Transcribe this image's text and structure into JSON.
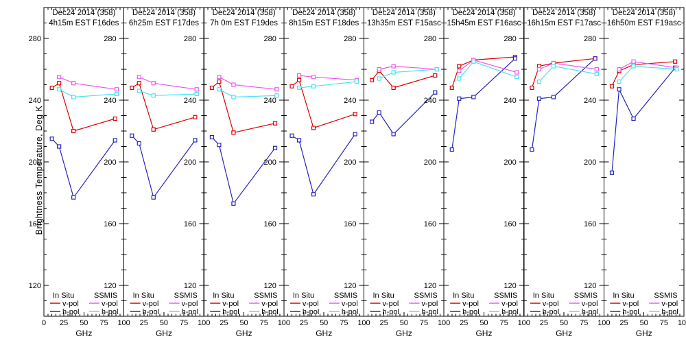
{
  "figure": {
    "ylabel": "Brightness Temperature, Deg K",
    "xlabel_per_panel": "GHz",
    "background": "#ffffff",
    "frame_color": "#000000",
    "y_ticks": [
      280,
      240,
      200,
      160,
      120
    ],
    "x_ticks": [
      0,
      25,
      50,
      75,
      100
    ],
    "ylim": [
      100,
      300
    ],
    "xlim": [
      0,
      100
    ],
    "y_minor_step": 10,
    "x_minor_step": 5,
    "legend": {
      "group1": "In Situ",
      "group2": "SSMIS",
      "row1": "v-pol",
      "row2": "h-pol"
    },
    "colors": {
      "insitu_vpol": "#dd0000",
      "insitu_hpol": "#2424bc",
      "ssmis_vpol": "#ee58ee",
      "ssmis_hpol": "#44e4f2"
    }
  },
  "chart_data": [
    {
      "type": "line",
      "title_line1": "Dec24 2014 (358)",
      "title_line2": "4h15m EST F16des",
      "series": [
        {
          "name": "In Situ v-pol",
          "color": "insitu_vpol",
          "x": [
            10,
            19,
            37,
            89
          ],
          "y": [
            248,
            251,
            220,
            228
          ]
        },
        {
          "name": "In Situ h-pol",
          "color": "insitu_hpol",
          "x": [
            10,
            19,
            37,
            89
          ],
          "y": [
            215,
            210,
            177,
            214
          ]
        },
        {
          "name": "SSMIS v-pol",
          "color": "ssmis_vpol",
          "x": [
            19,
            37,
            91
          ],
          "y": [
            255,
            251,
            247
          ]
        },
        {
          "name": "SSMIS h-pol",
          "color": "ssmis_hpol",
          "x": [
            19,
            37,
            91
          ],
          "y": [
            247,
            242,
            244
          ]
        }
      ]
    },
    {
      "type": "line",
      "title_line1": "Dec24 2014 (358)",
      "title_line2": "6h25m EST F17des",
      "series": [
        {
          "name": "In Situ v-pol",
          "color": "insitu_vpol",
          "x": [
            10,
            19,
            37,
            89
          ],
          "y": [
            248,
            251,
            221,
            229
          ]
        },
        {
          "name": "In Situ h-pol",
          "color": "insitu_hpol",
          "x": [
            10,
            19,
            37,
            89
          ],
          "y": [
            217,
            212,
            177,
            214
          ]
        },
        {
          "name": "SSMIS v-pol",
          "color": "ssmis_vpol",
          "x": [
            19,
            37,
            91
          ],
          "y": [
            255,
            251,
            247
          ]
        },
        {
          "name": "SSMIS h-pol",
          "color": "ssmis_hpol",
          "x": [
            19,
            37,
            91
          ],
          "y": [
            246,
            243,
            244
          ]
        }
      ]
    },
    {
      "type": "line",
      "title_line1": "Dec24 2014 (358)",
      "title_line2": "7h 0m EST F19des",
      "series": [
        {
          "name": "In Situ v-pol",
          "color": "insitu_vpol",
          "x": [
            10,
            19,
            37,
            89
          ],
          "y": [
            248,
            252,
            219,
            225
          ]
        },
        {
          "name": "In Situ h-pol",
          "color": "insitu_hpol",
          "x": [
            10,
            19,
            37,
            89
          ],
          "y": [
            216,
            211,
            173,
            209
          ]
        },
        {
          "name": "SSMIS v-pol",
          "color": "ssmis_vpol",
          "x": [
            19,
            37,
            91
          ],
          "y": [
            255,
            250,
            247
          ]
        },
        {
          "name": "SSMIS h-pol",
          "color": "ssmis_hpol",
          "x": [
            19,
            37,
            91
          ],
          "y": [
            247,
            242,
            243
          ]
        }
      ]
    },
    {
      "type": "line",
      "title_line1": "Dec24 2014 (358)",
      "title_line2": "8h15m EST F18des",
      "series": [
        {
          "name": "In Situ v-pol",
          "color": "insitu_vpol",
          "x": [
            10,
            19,
            37,
            89
          ],
          "y": [
            249,
            253,
            222,
            231
          ]
        },
        {
          "name": "In Situ h-pol",
          "color": "insitu_hpol",
          "x": [
            10,
            19,
            37,
            89
          ],
          "y": [
            217,
            214,
            179,
            218
          ]
        },
        {
          "name": "SSMIS v-pol",
          "color": "ssmis_vpol",
          "x": [
            19,
            37,
            91
          ],
          "y": [
            256,
            255,
            253
          ]
        },
        {
          "name": "SSMIS h-pol",
          "color": "ssmis_hpol",
          "x": [
            19,
            37,
            91
          ],
          "y": [
            248,
            249,
            252
          ]
        }
      ]
    },
    {
      "type": "line",
      "title_line1": "Dec24 2014 (358)",
      "title_line2": "13h35m EST F15asc",
      "series": [
        {
          "name": "In Situ v-pol",
          "color": "insitu_vpol",
          "x": [
            10,
            19,
            37,
            89
          ],
          "y": [
            253,
            259,
            248,
            256
          ]
        },
        {
          "name": "In Situ h-pol",
          "color": "insitu_hpol",
          "x": [
            10,
            19,
            37,
            89
          ],
          "y": [
            226,
            232,
            218,
            245
          ]
        },
        {
          "name": "SSMIS v-pol",
          "color": "ssmis_vpol",
          "x": [
            19,
            37,
            91
          ],
          "y": [
            260,
            262,
            260
          ]
        },
        {
          "name": "SSMIS h-pol",
          "color": "ssmis_hpol",
          "x": [
            19,
            37,
            91
          ],
          "y": [
            254,
            258,
            260
          ]
        }
      ]
    },
    {
      "type": "line",
      "title_line1": "Dec24 2014 (358)",
      "title_line2": "15h45m EST F16asc",
      "series": [
        {
          "name": "In Situ v-pol",
          "color": "insitu_vpol",
          "x": [
            10,
            19,
            37,
            89
          ],
          "y": [
            248,
            262,
            266,
            268
          ]
        },
        {
          "name": "In Situ h-pol",
          "color": "insitu_hpol",
          "x": [
            10,
            19,
            37,
            89
          ],
          "y": [
            208,
            241,
            242,
            267
          ]
        },
        {
          "name": "SSMIS v-pol",
          "color": "ssmis_vpol",
          "x": [
            19,
            37,
            91
          ],
          "y": [
            259,
            266,
            258
          ]
        },
        {
          "name": "SSMIS h-pol",
          "color": "ssmis_hpol",
          "x": [
            19,
            37,
            91
          ],
          "y": [
            254,
            265,
            255
          ]
        }
      ]
    },
    {
      "type": "line",
      "title_line1": "Dec24 2014 (358)",
      "title_line2": "16h15m EST F17asc",
      "series": [
        {
          "name": "In Situ v-pol",
          "color": "insitu_vpol",
          "x": [
            10,
            19,
            37,
            89
          ],
          "y": [
            248,
            262,
            264,
            267
          ]
        },
        {
          "name": "In Situ h-pol",
          "color": "insitu_hpol",
          "x": [
            10,
            19,
            37,
            89
          ],
          "y": [
            208,
            241,
            242,
            267
          ]
        },
        {
          "name": "SSMIS v-pol",
          "color": "ssmis_vpol",
          "x": [
            19,
            37,
            91
          ],
          "y": [
            260,
            264,
            260
          ]
        },
        {
          "name": "SSMIS h-pol",
          "color": "ssmis_hpol",
          "x": [
            19,
            37,
            91
          ],
          "y": [
            252,
            262,
            257
          ]
        }
      ]
    },
    {
      "type": "line",
      "title_line1": "Dec24 2014 (358)",
      "title_line2": "16h50m EST F19asc",
      "series": [
        {
          "name": "In Situ v-pol",
          "color": "insitu_vpol",
          "x": [
            10,
            19,
            37,
            89
          ],
          "y": [
            249,
            259,
            263,
            265
          ]
        },
        {
          "name": "In Situ h-pol",
          "color": "insitu_hpol",
          "x": [
            10,
            19,
            37,
            89
          ],
          "y": [
            193,
            247,
            228,
            261
          ]
        },
        {
          "name": "SSMIS v-pol",
          "color": "ssmis_vpol",
          "x": [
            19,
            37,
            91
          ],
          "y": [
            260,
            265,
            261
          ]
        },
        {
          "name": "SSMIS h-pol",
          "color": "ssmis_hpol",
          "x": [
            19,
            37,
            91
          ],
          "y": [
            252,
            262,
            260
          ]
        }
      ]
    }
  ]
}
